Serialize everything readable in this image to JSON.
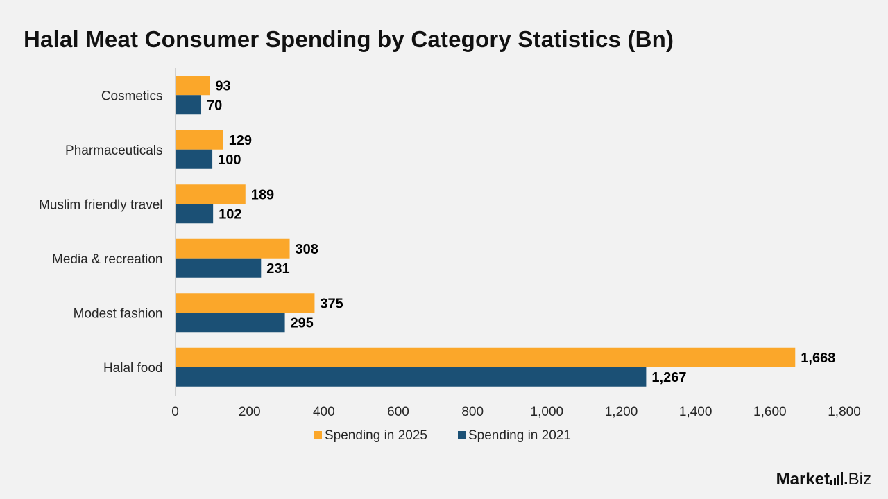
{
  "chart_data": {
    "type": "bar",
    "orientation": "horizontal",
    "title": "Halal Meat Consumer Spending by Category Statistics (Bn)",
    "categories": [
      "Cosmetics",
      "Pharmaceuticals",
      "Muslim friendly travel",
      "Media & recreation",
      "Modest fashion",
      "Halal food"
    ],
    "series": [
      {
        "name": "Spending in 2025",
        "color": "#fba72a",
        "values": [
          93,
          129,
          189,
          308,
          375,
          1668
        ],
        "labels": [
          "93",
          "129",
          "189",
          "308",
          "375",
          "1,668"
        ]
      },
      {
        "name": "Spending in 2021",
        "color": "#1b5075",
        "values": [
          70,
          100,
          102,
          231,
          295,
          1267
        ],
        "labels": [
          "70",
          "100",
          "102",
          "231",
          "295",
          "1,267"
        ]
      }
    ],
    "xlim": [
      0,
      1800
    ],
    "x_ticks": [
      0,
      200,
      400,
      600,
      800,
      1000,
      1200,
      1400,
      1600,
      1800
    ],
    "x_tick_labels": [
      "0",
      "200",
      "400",
      "600",
      "800",
      "1,000",
      "1,200",
      "1,400",
      "1,600",
      "1,800"
    ],
    "grid": false,
    "legend_position": "bottom"
  },
  "branding": {
    "logo_main": "Market",
    "logo_dot": ".",
    "logo_suffix": "Biz"
  }
}
